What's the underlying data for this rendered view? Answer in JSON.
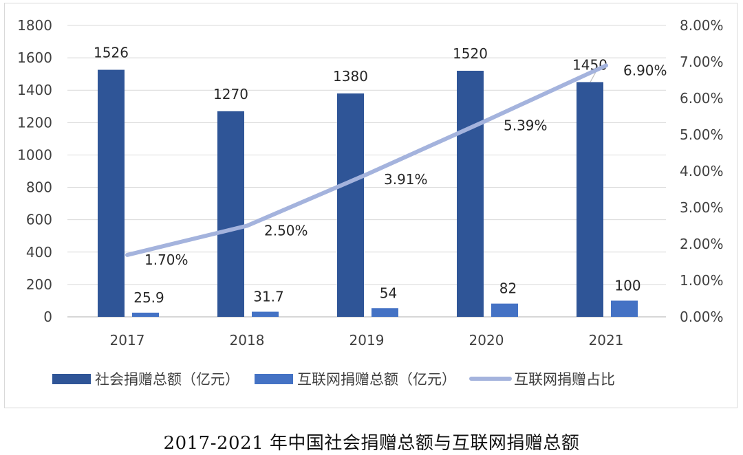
{
  "chart_data": {
    "type": "bar",
    "categories": [
      "2017",
      "2018",
      "2019",
      "2020",
      "2021"
    ],
    "series": [
      {
        "name": "社会捐赠总额（亿元）",
        "kind": "bar",
        "axis": "left",
        "color": "#2f5597",
        "values": [
          1526,
          1270,
          1380,
          1520,
          1450
        ],
        "labels": [
          "1526",
          "1270",
          "1380",
          "1520",
          "1450"
        ]
      },
      {
        "name": "互联网捐赠总额（亿元）",
        "kind": "bar",
        "axis": "left",
        "color": "#4472c4",
        "values": [
          25.9,
          31.7,
          54,
          82,
          100
        ],
        "labels": [
          "25.9",
          "31.7",
          "54",
          "82",
          "100"
        ]
      },
      {
        "name": "互联网捐赠占比",
        "kind": "line",
        "axis": "right",
        "color": "#a4b3dd",
        "values": [
          1.7,
          2.5,
          3.91,
          5.39,
          6.9
        ],
        "labels": [
          "1.70%",
          "2.50%",
          "3.91%",
          "5.39%",
          "6.90%"
        ]
      }
    ],
    "y_left": {
      "lim": [
        0,
        1800
      ],
      "ticks": [
        "0",
        "200",
        "400",
        "600",
        "800",
        "1000",
        "1200",
        "1400",
        "1600",
        "1800"
      ]
    },
    "y_right": {
      "lim": [
        0,
        8
      ],
      "ticks": [
        "0.00%",
        "1.00%",
        "2.00%",
        "3.00%",
        "4.00%",
        "5.00%",
        "6.00%",
        "7.00%",
        "8.00%"
      ]
    },
    "grid": true,
    "legend": "bottom"
  },
  "caption": "2017-2021 年中国社会捐赠总额与互联网捐赠总额"
}
